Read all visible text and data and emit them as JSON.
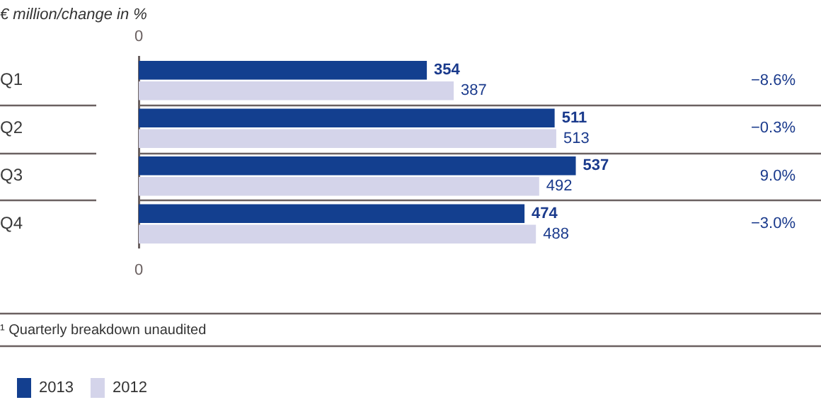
{
  "chart_data": {
    "type": "bar",
    "orientation": "horizontal",
    "title": "€ million/change in %",
    "categories": [
      "Q1",
      "Q2",
      "Q3",
      "Q4"
    ],
    "series": [
      {
        "name": "2013",
        "color": "#133f8f",
        "values": [
          354,
          511,
          537,
          474
        ]
      },
      {
        "name": "2012",
        "color": "#d4d4ea",
        "values": [
          387,
          513,
          492,
          488
        ]
      }
    ],
    "data_labels": true,
    "legend": "bottom left",
    "annotations": [
      "0",
      "−8.6%",
      "−0.3%",
      "9.0%",
      "−3.0%",
      "0",
      "¹ Quarterly breakdown unaudited"
    ]
  }
}
